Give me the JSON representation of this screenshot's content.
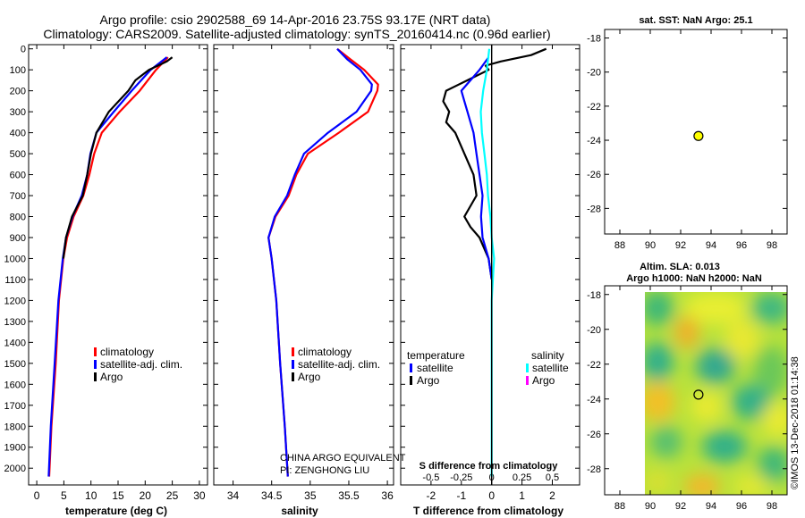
{
  "header": {
    "line1": "Argo profile: csio 2902588_69 14-Apr-2016 23.75S 93.17E (NRT data)",
    "line2": "Climatology: CARS2009. Satellite-adjusted climatology: synTS_20160414.nc (0.96d earlier)"
  },
  "colors": {
    "climatology": "#ff0000",
    "satellite": "#0000ff",
    "argo": "#000000",
    "s_satellite": "#00ffff",
    "s_argo": "#ff00ff",
    "float": "#ffff00"
  },
  "chart_data": [
    {
      "type": "line",
      "title": "",
      "xlabel": "temperature (deg C)",
      "ylabel": "",
      "xlim": [
        -1.5,
        31.5
      ],
      "ylim": [
        2080,
        -20
      ],
      "xticks": [
        0,
        5,
        10,
        15,
        20,
        25,
        30
      ],
      "yticks": [
        0,
        100,
        200,
        300,
        400,
        500,
        600,
        700,
        800,
        900,
        1000,
        1100,
        1200,
        1300,
        1400,
        1500,
        1600,
        1700,
        1800,
        1900,
        2000
      ],
      "legend": [
        "climatology",
        "satellite-adj. clim.",
        "Argo"
      ],
      "series": [
        {
          "name": "climatology",
          "color": "#ff0000",
          "depth": [
            40,
            100,
            200,
            300,
            400,
            500,
            600,
            700,
            800,
            900,
            1000,
            1200,
            1500,
            1800,
            2040
          ],
          "values": [
            24.2,
            22.0,
            19.0,
            15.3,
            12.0,
            10.6,
            9.7,
            8.6,
            6.8,
            5.6,
            4.9,
            4.1,
            3.5,
            2.7,
            2.3
          ]
        },
        {
          "name": "satellite-adj. clim.",
          "color": "#0000ff",
          "depth": [
            40,
            100,
            200,
            300,
            400,
            500,
            600,
            700,
            800,
            900,
            1000,
            1200,
            1500,
            1800,
            2040
          ],
          "values": [
            24.0,
            21.0,
            17.5,
            14.2,
            11.0,
            9.9,
            9.3,
            8.3,
            6.6,
            5.4,
            4.8,
            4.0,
            3.3,
            2.6,
            2.2
          ]
        },
        {
          "name": "Argo",
          "color": "#000000",
          "depth": [
            40,
            60,
            100,
            150,
            200,
            300,
            400,
            500,
            600,
            700,
            800,
            900,
            1000
          ],
          "values": [
            25.0,
            24.0,
            20.7,
            18.2,
            16.9,
            13.3,
            11.0,
            10.0,
            9.3,
            8.5,
            6.5,
            5.4,
            4.9
          ]
        }
      ]
    },
    {
      "type": "line",
      "xlabel": "salinity",
      "xlim": [
        33.75,
        36.08
      ],
      "ylim": [
        2080,
        -20
      ],
      "xticks": [
        34,
        34.5,
        35,
        35.5,
        36
      ],
      "xticklabels": [
        "34",
        "34.5",
        "35",
        "35.5",
        "36"
      ],
      "legend": [
        "climatology",
        "satellite-adj. clim.",
        "Argo"
      ],
      "annotation": [
        "CHINA ARGO EQUIVALENT",
        "PI: ZENGHONG LIU"
      ],
      "series": [
        {
          "name": "climatology",
          "color": "#ff0000",
          "depth": [
            0,
            50,
            100,
            170,
            200,
            300,
            400,
            500,
            600,
            700,
            800,
            900,
            1000,
            1200,
            1500,
            1800,
            2040
          ],
          "values": [
            35.35,
            35.52,
            35.7,
            35.88,
            35.87,
            35.75,
            35.37,
            34.97,
            34.82,
            34.72,
            34.55,
            34.46,
            34.5,
            34.56,
            34.61,
            34.67,
            34.71
          ]
        },
        {
          "name": "satellite-adj. clim.",
          "color": "#0000ff",
          "depth": [
            0,
            50,
            100,
            170,
            200,
            300,
            400,
            500,
            600,
            700,
            800,
            900,
            1000,
            1200,
            1500,
            1800,
            2040
          ],
          "values": [
            35.35,
            35.48,
            35.65,
            35.8,
            35.79,
            35.6,
            35.23,
            34.92,
            34.8,
            34.7,
            34.54,
            34.46,
            34.5,
            34.56,
            34.61,
            34.67,
            34.71
          ]
        }
      ]
    },
    {
      "type": "line",
      "xlabel": "T difference from climatology",
      "xlabel_top": "S difference from climatology",
      "xlim": [
        -3.0,
        2.9
      ],
      "ylim": [
        2080,
        -20
      ],
      "xticks": [
        -2,
        -1,
        0,
        1,
        2
      ],
      "xticklabels": [
        "-2",
        "-1",
        "0",
        "1",
        "2"
      ],
      "s_ticks": [
        -0.5,
        -0.25,
        0,
        0.25,
        0.5
      ],
      "s_ticklabels": [
        "-0.5",
        "-0.25",
        "0",
        "0.25",
        "0.5"
      ],
      "legend_temperature_title": "temperature",
      "legend_salinity_title": "salinity",
      "legend_temperature": [
        "satellite",
        "Argo"
      ],
      "legend_salinity": [
        "satellite",
        "Argo"
      ],
      "series": [
        {
          "name": "Argo T diff",
          "color": "#000000",
          "depth": [
            0,
            30,
            60,
            80,
            100,
            150,
            200,
            250,
            300,
            350,
            400,
            500,
            600,
            700,
            800,
            850,
            900,
            1000,
            1100
          ],
          "values": [
            1.8,
            1.3,
            0.3,
            -0.2,
            -0.1,
            -0.8,
            -1.5,
            -1.6,
            -1.4,
            -1.5,
            -1.2,
            -0.9,
            -0.6,
            -0.5,
            -0.9,
            -0.7,
            -0.4,
            -0.1,
            0.0
          ]
        },
        {
          "name": "satellite T diff",
          "color": "#0000ff",
          "depth": [
            40,
            80,
            100,
            150,
            200,
            250,
            300,
            400,
            500,
            600,
            700,
            800,
            900,
            1000,
            1100
          ],
          "values": [
            -0.1,
            -0.3,
            -0.4,
            -0.7,
            -1.0,
            -0.9,
            -0.8,
            -0.6,
            -0.5,
            -0.4,
            -0.3,
            -0.35,
            -0.3,
            -0.1,
            0.0
          ]
        },
        {
          "name": "satellite S diff",
          "color": "#00ffff",
          "depth": [
            0,
            100,
            200,
            300,
            400,
            500,
            600,
            700,
            800,
            900,
            1000,
            1200,
            1500,
            1800,
            2040
          ],
          "values": [
            -0.02,
            -0.04,
            -0.07,
            -0.09,
            -0.08,
            -0.06,
            -0.04,
            -0.03,
            -0.01,
            0.0,
            0.02,
            0.0,
            0.0,
            0.0,
            0.0
          ]
        }
      ]
    },
    {
      "type": "scatter",
      "title": "sat. SST: NaN Argo: 25.1",
      "xlim": [
        87,
        99
      ],
      "ylim": [
        -29.5,
        -17.5
      ],
      "xticks": [
        88,
        90,
        92,
        94,
        96,
        98
      ],
      "yticks": [
        -18,
        -20,
        -22,
        -24,
        -26,
        -28
      ],
      "point": {
        "lon": 93.17,
        "lat": -23.75
      }
    },
    {
      "type": "heatmap",
      "title_line1": "Altim. SLA: 0.013",
      "title_line2": "Argo h1000: NaN h2000: NaN",
      "xlim": [
        87,
        99
      ],
      "ylim": [
        -29.5,
        -17.5
      ],
      "xticks": [
        88,
        90,
        92,
        94,
        96,
        98
      ],
      "yticks": [
        -18,
        -20,
        -22,
        -24,
        -26,
        -28
      ],
      "point": {
        "lon": 93.17,
        "lat": -23.75
      }
    }
  ],
  "footer": {
    "imos": "©IMOS 13-Dec-2018 01:14:38"
  }
}
